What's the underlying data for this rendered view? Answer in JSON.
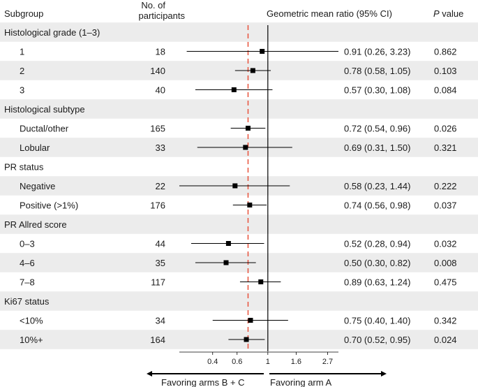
{
  "headers": {
    "subgroup": "Subgroup",
    "participants_line1": "No. of",
    "participants_line2": "participants",
    "ratio": "Geometric mean ratio (95% CI)",
    "p_italic": "P",
    "p_rest": " value"
  },
  "colors": {
    "band": "#ececec",
    "reference_line": "#e8513a",
    "marker": "#000000",
    "text": "#1a1a1a"
  },
  "chart_data": {
    "type": "forest",
    "xscale": "log",
    "xlim": [
      0.23,
      3.23
    ],
    "ticks": [
      {
        "value": 0.4,
        "label": "0.4"
      },
      {
        "value": 0.6,
        "label": "0.6"
      },
      {
        "value": 1.0,
        "label": "1"
      },
      {
        "value": 1.6,
        "label": "1.6"
      },
      {
        "value": 2.7,
        "label": "2.7"
      }
    ],
    "no_effect_line": 1.0,
    "overall_reference_line": 0.72,
    "favoring_left": "Favoring arms B + C",
    "favoring_right": "Favoring arm A",
    "rows": [
      {
        "type": "group",
        "label": "Histological grade (1–3)"
      },
      {
        "type": "item",
        "label": "1",
        "n": "18",
        "est": 0.91,
        "lo": 0.26,
        "hi": 3.23,
        "ci_text": "0.91 (0.26, 3.23)",
        "p": "0.862"
      },
      {
        "type": "item",
        "label": "2",
        "n": "140",
        "est": 0.78,
        "lo": 0.58,
        "hi": 1.05,
        "ci_text": "0.78 (0.58, 1.05)",
        "p": "0.103"
      },
      {
        "type": "item",
        "label": "3",
        "n": "40",
        "est": 0.57,
        "lo": 0.3,
        "hi": 1.08,
        "ci_text": "0.57 (0.30, 1.08)",
        "p": "0.084"
      },
      {
        "type": "group",
        "label": "Histological subtype"
      },
      {
        "type": "item",
        "label": "Ductal/other",
        "n": "165",
        "est": 0.72,
        "lo": 0.54,
        "hi": 0.96,
        "ci_text": "0.72 (0.54, 0.96)",
        "p": "0.026"
      },
      {
        "type": "item",
        "label": "Lobular",
        "n": "33",
        "est": 0.69,
        "lo": 0.31,
        "hi": 1.5,
        "ci_text": "0.69 (0.31, 1.50)",
        "p": "0.321"
      },
      {
        "type": "group",
        "label": "PR status"
      },
      {
        "type": "item",
        "label": "Negative",
        "n": "22",
        "est": 0.58,
        "lo": 0.23,
        "hi": 1.44,
        "ci_text": "0.58 (0.23, 1.44)",
        "p": "0.222"
      },
      {
        "type": "item",
        "label": "Positive (>1%)",
        "n": "176",
        "est": 0.74,
        "lo": 0.56,
        "hi": 0.98,
        "ci_text": "0.74 (0.56, 0.98)",
        "p": "0.037"
      },
      {
        "type": "group",
        "label": "PR Allred score"
      },
      {
        "type": "item",
        "label": "0–3",
        "n": "44",
        "est": 0.52,
        "lo": 0.28,
        "hi": 0.94,
        "ci_text": "0.52 (0.28, 0.94)",
        "p": "0.032"
      },
      {
        "type": "item",
        "label": "4–6",
        "n": "35",
        "est": 0.5,
        "lo": 0.3,
        "hi": 0.82,
        "ci_text": "0.50 (0.30, 0.82)",
        "p": "0.008"
      },
      {
        "type": "item",
        "label": "7–8",
        "n": "117",
        "est": 0.89,
        "lo": 0.63,
        "hi": 1.24,
        "ci_text": "0.89 (0.63, 1.24)",
        "p": "0.475"
      },
      {
        "type": "group",
        "label": "Ki67 status"
      },
      {
        "type": "item",
        "label": "<10%",
        "n": "34",
        "est": 0.75,
        "lo": 0.4,
        "hi": 1.4,
        "ci_text": "0.75 (0.40, 1.40)",
        "p": "0.342"
      },
      {
        "type": "item",
        "label": "10%+",
        "n": "164",
        "est": 0.7,
        "lo": 0.52,
        "hi": 0.95,
        "ci_text": "0.70 (0.52, 0.95)",
        "p": "0.024"
      }
    ]
  }
}
